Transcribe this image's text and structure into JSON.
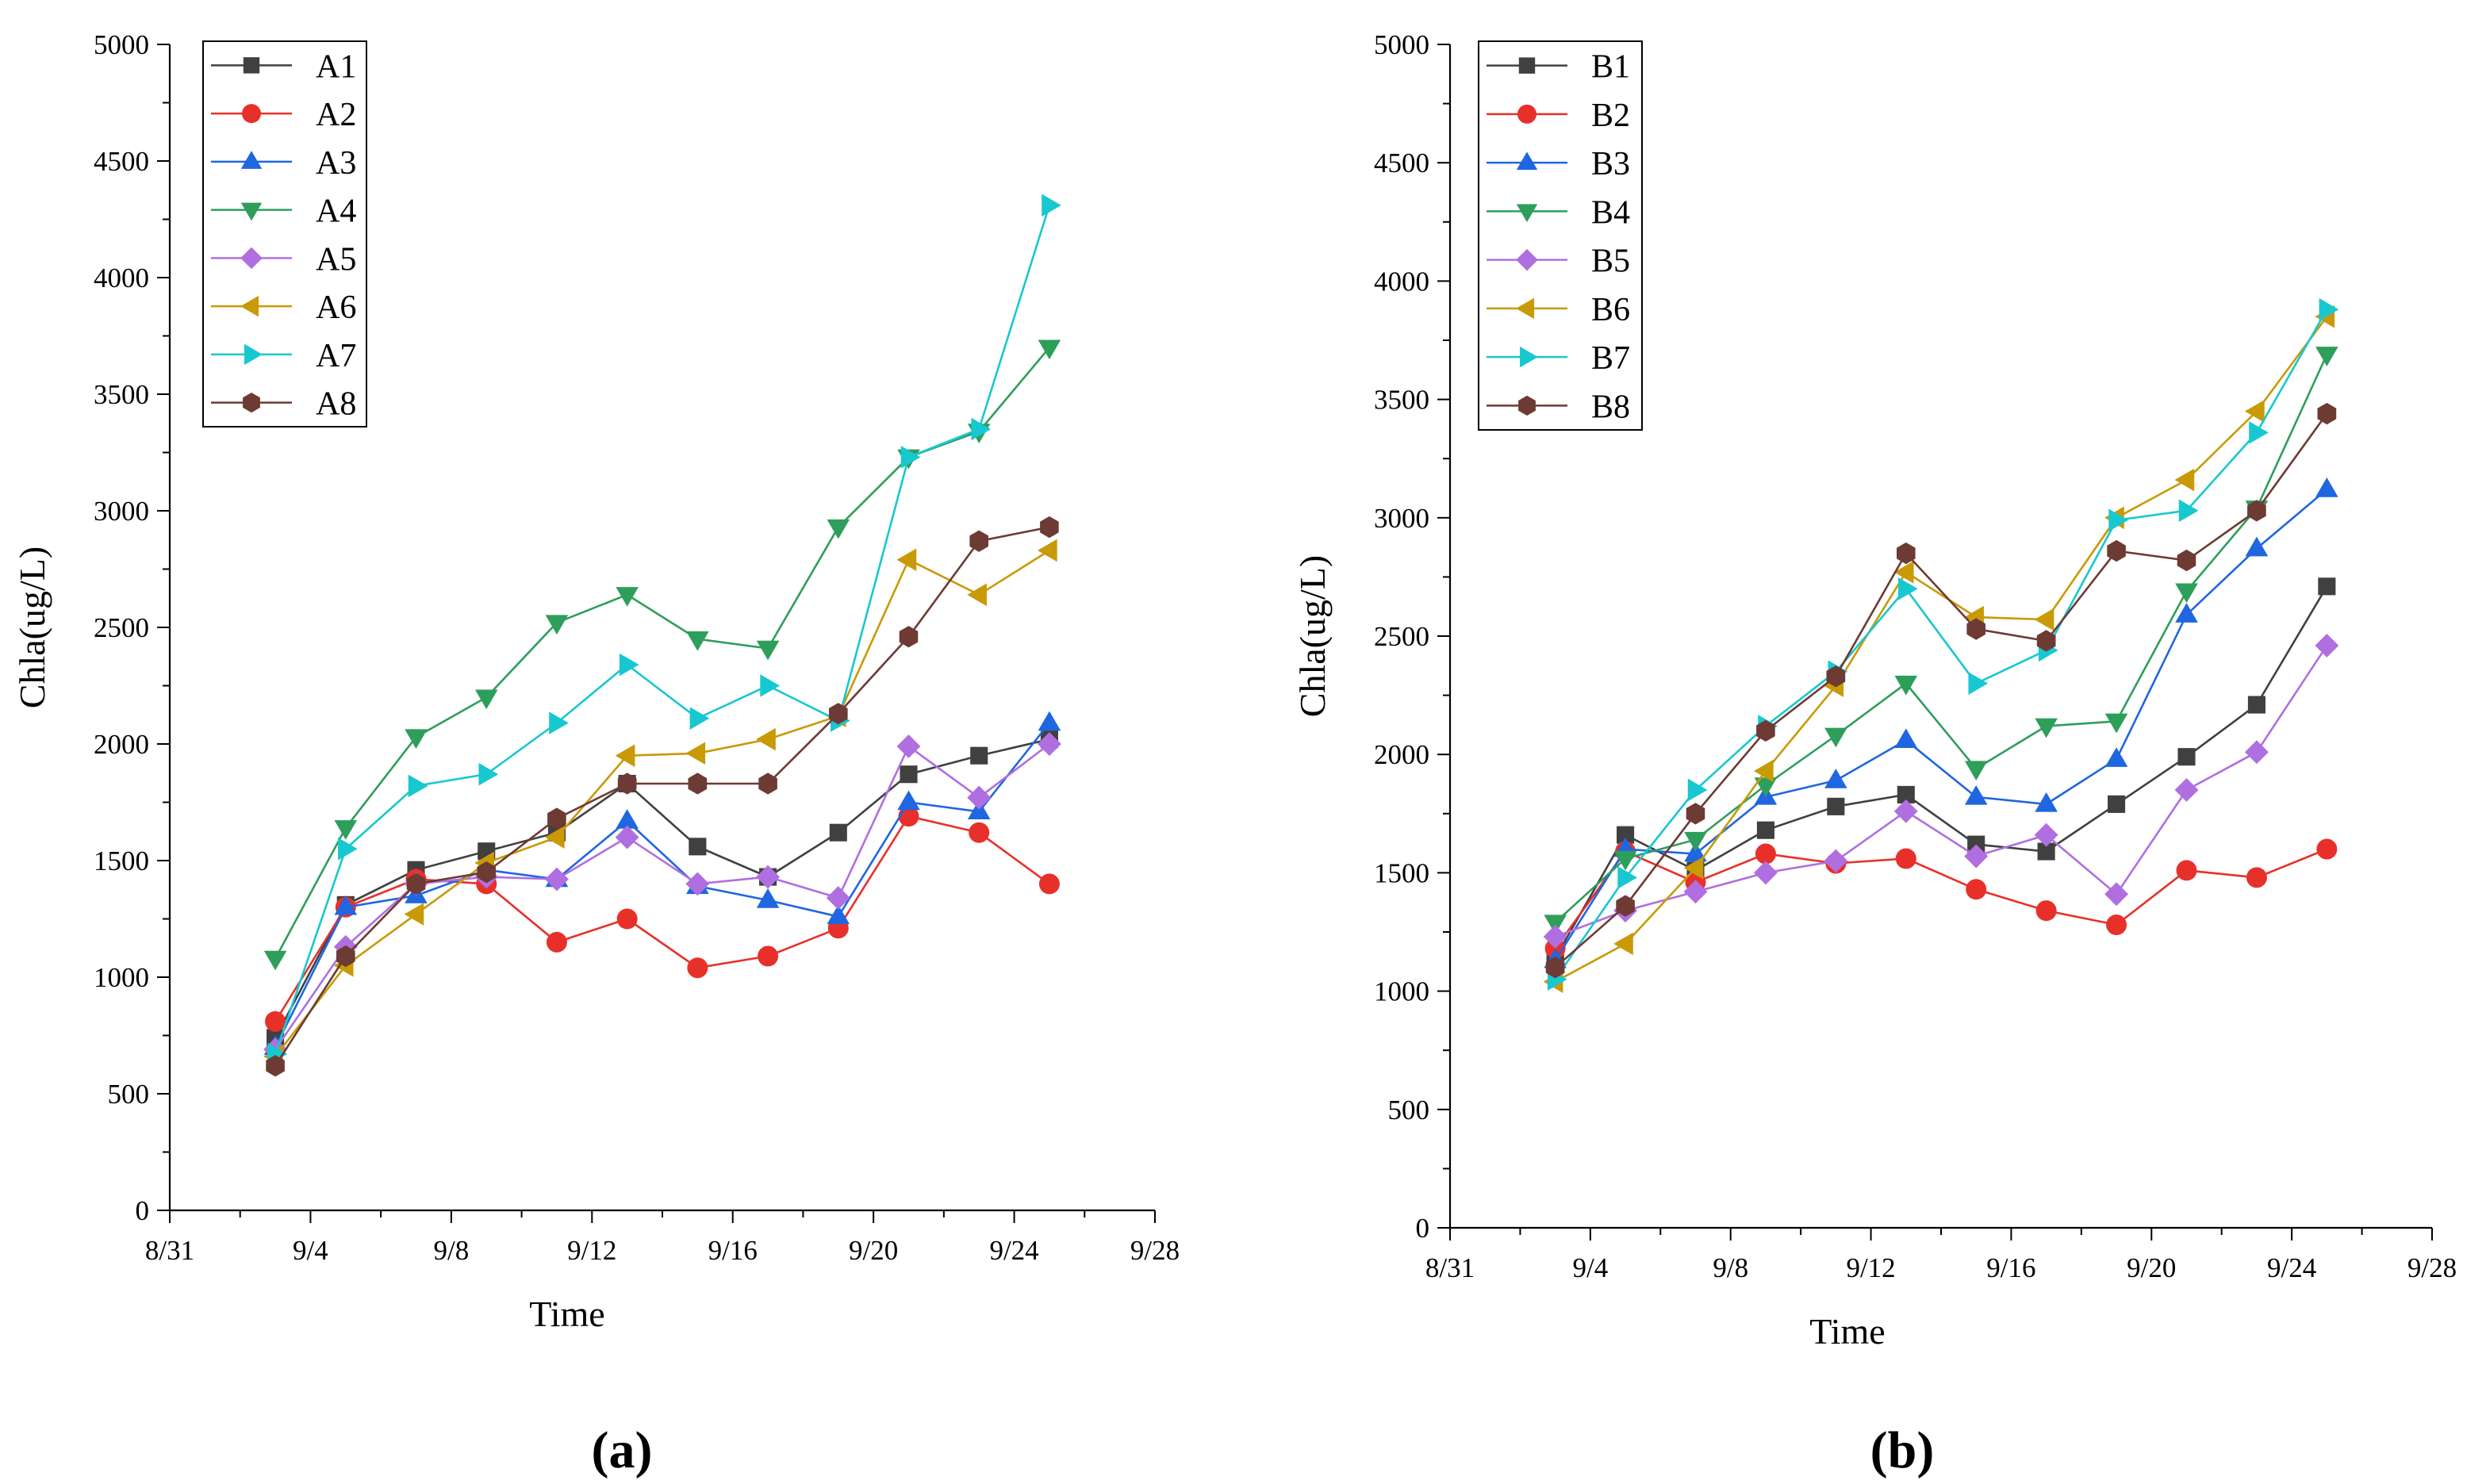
{
  "chart_data": [
    {
      "type": "line",
      "panel_label": "(a)",
      "xlabel": "Time",
      "ylabel": "Chla(ug/L)",
      "x_ticks": [
        "8/31",
        "9/4",
        "9/8",
        "9/12",
        "9/16",
        "9/20",
        "9/24",
        "9/28"
      ],
      "y_ticks": [
        "0",
        "500",
        "1000",
        "1500",
        "2000",
        "2500",
        "3000",
        "3500",
        "4000",
        "4500",
        "5000"
      ],
      "ylim": [
        0,
        5000
      ],
      "xlim_days": [
        0,
        28
      ],
      "x_days": [
        3,
        5,
        7,
        9,
        11,
        13,
        15,
        17,
        19,
        21,
        23,
        25
      ],
      "legend_position": "top-left",
      "series": [
        {
          "name": "A1",
          "color": "#404040",
          "marker": "square",
          "values": [
            740,
            1310,
            1460,
            1540,
            1620,
            1830,
            1560,
            1430,
            1620,
            1870,
            1950,
            2020
          ]
        },
        {
          "name": "A2",
          "color": "#e8302a",
          "marker": "circle",
          "values": [
            810,
            1300,
            1420,
            1400,
            1150,
            1250,
            1040,
            1090,
            1210,
            1690,
            1620,
            1400
          ]
        },
        {
          "name": "A3",
          "color": "#1f66e0",
          "marker": "triangle-up",
          "values": [
            700,
            1300,
            1350,
            1460,
            1420,
            1670,
            1390,
            1330,
            1260,
            1750,
            1710,
            2090
          ]
        },
        {
          "name": "A4",
          "color": "#2e9e5b",
          "marker": "triangle-down",
          "values": [
            1080,
            1640,
            2030,
            2200,
            2520,
            2640,
            2450,
            2410,
            2930,
            3230,
            3340,
            3700
          ]
        },
        {
          "name": "A5",
          "color": "#b06fe0",
          "marker": "diamond",
          "values": [
            690,
            1130,
            1400,
            1430,
            1420,
            1600,
            1400,
            1430,
            1340,
            1990,
            1770,
            2000
          ]
        },
        {
          "name": "A6",
          "color": "#c99a06",
          "marker": "triangle-left",
          "values": [
            660,
            1050,
            1270,
            1490,
            1600,
            1950,
            1960,
            2020,
            2120,
            2790,
            2640,
            2830
          ]
        },
        {
          "name": "A7",
          "color": "#17c8d0",
          "marker": "triangle-right",
          "values": [
            670,
            1550,
            1820,
            1870,
            2090,
            2340,
            2110,
            2250,
            2100,
            3230,
            3350,
            4310
          ]
        },
        {
          "name": "A8",
          "color": "#6e3a34",
          "marker": "hexagon",
          "values": [
            620,
            1090,
            1400,
            1450,
            1680,
            1830,
            1830,
            1830,
            2130,
            2460,
            2870,
            2930
          ]
        }
      ]
    },
    {
      "type": "line",
      "panel_label": "(b)",
      "xlabel": "Time",
      "ylabel": "Chla(ug/L)",
      "x_ticks": [
        "8/31",
        "9/4",
        "9/8",
        "9/12",
        "9/16",
        "9/20",
        "9/24",
        "9/28"
      ],
      "y_ticks": [
        "0",
        "500",
        "1000",
        "1500",
        "2000",
        "2500",
        "3000",
        "3500",
        "4000",
        "4500",
        "5000"
      ],
      "ylim": [
        0,
        5000
      ],
      "xlim_days": [
        0,
        28
      ],
      "x_days": [
        3,
        5,
        7,
        9,
        11,
        13,
        15,
        17,
        19,
        21,
        23,
        25
      ],
      "legend_position": "top-left",
      "series": [
        {
          "name": "B1",
          "color": "#404040",
          "marker": "square",
          "values": [
            1140,
            1660,
            1510,
            1680,
            1780,
            1830,
            1620,
            1590,
            1790,
            1990,
            2210,
            2710
          ]
        },
        {
          "name": "B2",
          "color": "#e8302a",
          "marker": "circle",
          "values": [
            1180,
            1590,
            1460,
            1580,
            1540,
            1560,
            1430,
            1340,
            1280,
            1510,
            1480,
            1600
          ]
        },
        {
          "name": "B3",
          "color": "#1f66e0",
          "marker": "triangle-up",
          "values": [
            1130,
            1600,
            1580,
            1820,
            1890,
            2060,
            1820,
            1790,
            1980,
            2590,
            2870,
            3120
          ]
        },
        {
          "name": "B4",
          "color": "#2e9e5b",
          "marker": "triangle-down",
          "values": [
            1290,
            1560,
            1640,
            1870,
            2080,
            2300,
            1940,
            2120,
            2140,
            2690,
            3040,
            3690
          ]
        },
        {
          "name": "B5",
          "color": "#b06fe0",
          "marker": "diamond",
          "values": [
            1230,
            1340,
            1420,
            1500,
            1550,
            1760,
            1570,
            1660,
            1410,
            1850,
            2010,
            2460
          ]
        },
        {
          "name": "B6",
          "color": "#c99a06",
          "marker": "triangle-left",
          "values": [
            1040,
            1200,
            1520,
            1930,
            2290,
            2770,
            2580,
            2570,
            3000,
            3160,
            3450,
            3850
          ]
        },
        {
          "name": "B7",
          "color": "#17c8d0",
          "marker": "triangle-right",
          "values": [
            1050,
            1480,
            1850,
            2120,
            2350,
            2700,
            2300,
            2440,
            2990,
            3030,
            3360,
            3880
          ]
        },
        {
          "name": "B8",
          "color": "#6e3a34",
          "marker": "hexagon",
          "values": [
            1100,
            1360,
            1750,
            2100,
            2330,
            2850,
            2530,
            2480,
            2860,
            2820,
            3030,
            3440
          ]
        }
      ]
    }
  ]
}
